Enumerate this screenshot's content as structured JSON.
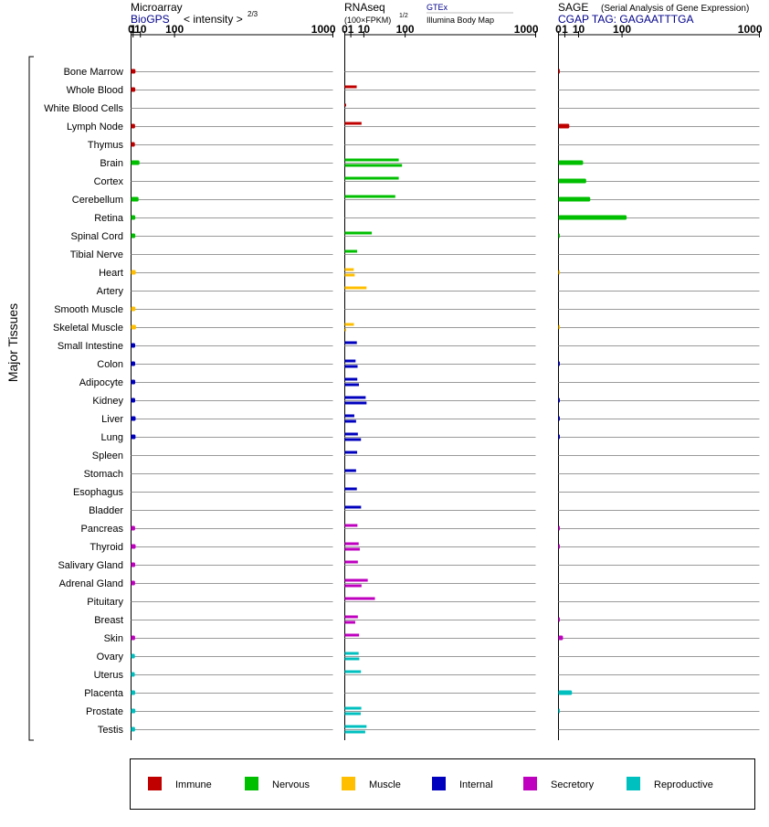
{
  "y_axis_label": "Major Tissues",
  "panels": {
    "microarray": {
      "title": "Microarray",
      "source": "BioGPS",
      "unit_label": "< intensity >",
      "exponent": "2/3"
    },
    "rnaseq": {
      "title": "RNAseq",
      "unit_label": "(100×FPKM)",
      "exponent": "1/2",
      "source1": "GTEx",
      "source2": "Illumina Body Map"
    },
    "sage": {
      "title": "SAGE",
      "subtitle": "(Serial Analysis of Gene Expression)",
      "tag": "CGAP TAG: GAGAATTTGA"
    }
  },
  "legend": [
    {
      "label": "Immune",
      "color": "#c00000"
    },
    {
      "label": "Nervous",
      "color": "#00bf00"
    },
    {
      "label": "Muscle",
      "color": "#ffbf00"
    },
    {
      "label": "Internal",
      "color": "#0000bf"
    },
    {
      "label": "Secretory",
      "color": "#bf00bf"
    },
    {
      "label": "Reproductive",
      "color": "#00bfbf"
    }
  ],
  "chart_data": [
    {
      "type": "bar",
      "name": "Microarray",
      "x_ticks": [
        "0",
        "1",
        "10",
        "100",
        "1000"
      ],
      "xlim": [
        0,
        1000
      ],
      "categories": [
        "Bone Marrow",
        "Whole Blood",
        "White Blood Cells",
        "Lymph Node",
        "Thymus",
        "Brain",
        "Cortex",
        "Cerebellum",
        "Retina",
        "Spinal Cord",
        "Tibial Nerve",
        "Heart",
        "Artery",
        "Smooth Muscle",
        "Skeletal Muscle",
        "Small Intestine",
        "Colon",
        "Adipocyte",
        "Kidney",
        "Liver",
        "Lung",
        "Spleen",
        "Stomach",
        "Esophagus",
        "Bladder",
        "Pancreas",
        "Thyroid",
        "Salivary Gland",
        "Adrenal Gland",
        "Pituitary",
        "Breast",
        "Skin",
        "Ovary",
        "Uterus",
        "Placenta",
        "Prostate",
        "Testis"
      ],
      "groups": [
        "Immune",
        "Immune",
        "Immune",
        "Immune",
        "Immune",
        "Nervous",
        "Nervous",
        "Nervous",
        "Nervous",
        "Nervous",
        "Nervous",
        "Muscle",
        "Muscle",
        "Muscle",
        "Muscle",
        "Internal",
        "Internal",
        "Internal",
        "Internal",
        "Internal",
        "Internal",
        "Internal",
        "Internal",
        "Internal",
        "Internal",
        "Secretory",
        "Secretory",
        "Secretory",
        "Secretory",
        "Secretory",
        "Secretory",
        "Secretory",
        "Reproductive",
        "Reproductive",
        "Reproductive",
        "Reproductive",
        "Reproductive"
      ],
      "values": [
        3.2,
        3.0,
        null,
        2.8,
        2.6,
        8.5,
        null,
        7.2,
        3.0,
        3.0,
        null,
        3.5,
        null,
        3.1,
        3.8,
        2.9,
        2.9,
        3.0,
        2.9,
        3.4,
        3.3,
        null,
        null,
        null,
        null,
        2.8,
        3.4,
        2.9,
        2.8,
        null,
        null,
        2.8,
        2.6,
        2.5,
        2.9,
        3.1,
        2.8
      ]
    },
    {
      "type": "bar",
      "name": "RNAseq",
      "x_ticks": [
        "0",
        "1",
        "10",
        "100",
        "1000"
      ],
      "xlim": [
        0,
        1000
      ],
      "categories": [
        "Bone Marrow",
        "Whole Blood",
        "White Blood Cells",
        "Lymph Node",
        "Thymus",
        "Brain",
        "Cortex",
        "Cerebellum",
        "Retina",
        "Spinal Cord",
        "Tibial Nerve",
        "Heart",
        "Artery",
        "Smooth Muscle",
        "Skeletal Muscle",
        "Small Intestine",
        "Colon",
        "Adipocyte",
        "Kidney",
        "Liver",
        "Lung",
        "Spleen",
        "Stomach",
        "Esophagus",
        "Bladder",
        "Pancreas",
        "Thyroid",
        "Salivary Gland",
        "Adrenal Gland",
        "Pituitary",
        "Breast",
        "Skin",
        "Ovary",
        "Uterus",
        "Placenta",
        "Prostate",
        "Testis"
      ],
      "series": [
        {
          "name": "GTEx",
          "values": [
            null,
            3.9,
            0.02,
            7.7,
            null,
            80,
            80,
            70,
            null,
            20,
            4.2,
            2.2,
            13,
            null,
            2.3,
            4.0,
            3.2,
            4.3,
            12,
            2.5,
            4.7,
            4.2,
            3.5,
            4.0,
            7.3,
            4.4,
            5.3,
            4.7,
            14.5,
            25,
            4.7,
            5.6,
            5.3,
            7.2,
            null,
            7.5,
            13
          ]
        },
        {
          "name": "Illumina Body Map",
          "values": [
            null,
            null,
            null,
            null,
            null,
            90,
            null,
            null,
            null,
            null,
            null,
            2.7,
            null,
            null,
            0.02,
            null,
            4.5,
            5.5,
            13,
            3.5,
            7.2,
            null,
            null,
            null,
            null,
            null,
            6.2,
            null,
            7.7,
            null,
            3.0,
            null,
            5.8,
            null,
            null,
            7.0,
            11.5
          ]
        }
      ]
    },
    {
      "type": "bar",
      "name": "SAGE",
      "x_ticks": [
        "0",
        "1",
        "10",
        "100",
        "1000"
      ],
      "xlim": [
        0,
        1000
      ],
      "categories": [
        "Bone Marrow",
        "Whole Blood",
        "White Blood Cells",
        "Lymph Node",
        "Thymus",
        "Brain",
        "Cortex",
        "Cerebellum",
        "Retina",
        "Spinal Cord",
        "Tibial Nerve",
        "Heart",
        "Artery",
        "Smooth Muscle",
        "Skeletal Muscle",
        "Small Intestine",
        "Colon",
        "Adipocyte",
        "Kidney",
        "Liver",
        "Lung",
        "Spleen",
        "Stomach",
        "Esophagus",
        "Bladder",
        "Pancreas",
        "Thyroid",
        "Salivary Gland",
        "Adrenal Gland",
        "Pituitary",
        "Breast",
        "Skin",
        "Ovary",
        "Uterus",
        "Placenta",
        "Prostate",
        "Testis"
      ],
      "values": [
        0.02,
        null,
        null,
        2.9,
        null,
        15,
        19,
        25,
        115,
        0.02,
        null,
        0.01,
        null,
        null,
        0.01,
        null,
        0.02,
        null,
        0.02,
        0.02,
        0.02,
        null,
        null,
        null,
        null,
        0.02,
        0.02,
        null,
        null,
        null,
        0.02,
        0.5,
        null,
        null,
        4.5,
        0.02,
        null
      ]
    }
  ]
}
